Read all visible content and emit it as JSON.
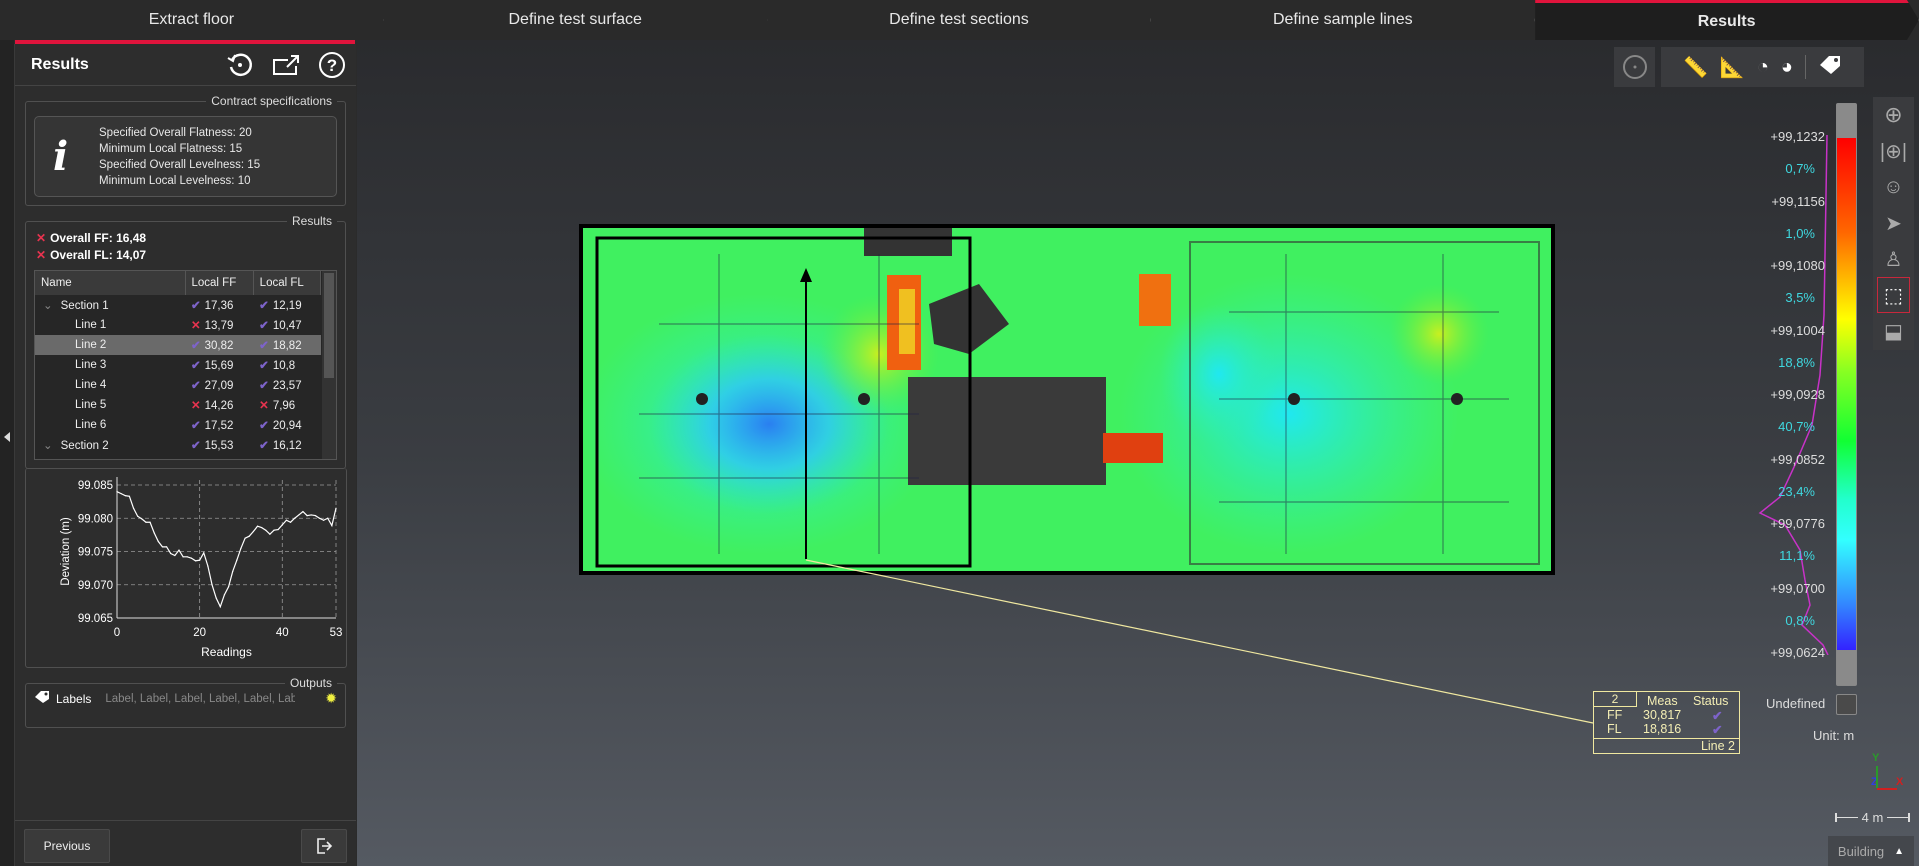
{
  "tabs": [
    "Extract floor",
    "Define test surface",
    "Define test sections",
    "Define sample lines",
    "Results"
  ],
  "panel": {
    "title": "Results",
    "contract": {
      "legend": "Contract specifications",
      "lines": [
        "Specified Overall Flatness: 20",
        "Minimum Local Flatness: 15",
        "Specified Overall Levelness: 15",
        "Minimum Local Levelness: 10"
      ]
    },
    "results": {
      "legend": "Results",
      "overall_ff": "Overall FF: 16,48",
      "overall_fl": "Overall FL: 14,07",
      "columns": [
        "Name",
        "Local FF",
        "Local FL"
      ],
      "rows": [
        {
          "name": "Section 1",
          "ff": "17,36",
          "ff_ok": true,
          "fl": "12,19",
          "fl_ok": true,
          "section": true
        },
        {
          "name": "Line 1",
          "ff": "13,79",
          "ff_ok": false,
          "fl": "10,47",
          "fl_ok": true
        },
        {
          "name": "Line 2",
          "ff": "30,82",
          "ff_ok": true,
          "fl": "18,82",
          "fl_ok": true,
          "selected": true
        },
        {
          "name": "Line 3",
          "ff": "15,69",
          "ff_ok": true,
          "fl": "10,8",
          "fl_ok": true
        },
        {
          "name": "Line 4",
          "ff": "27,09",
          "ff_ok": true,
          "fl": "23,57",
          "fl_ok": true
        },
        {
          "name": "Line 5",
          "ff": "14,26",
          "ff_ok": false,
          "fl": "7,96",
          "fl_ok": false
        },
        {
          "name": "Line 6",
          "ff": "17,52",
          "ff_ok": true,
          "fl": "20,94",
          "fl_ok": true
        },
        {
          "name": "Section 2",
          "ff": "15,53",
          "ff_ok": true,
          "fl": "16,12",
          "fl_ok": true,
          "section": true
        }
      ]
    },
    "outputs": {
      "legend": "Outputs",
      "label": "Labels",
      "value": "Label, Label, Label, Label, Label, Lab"
    },
    "previous": "Previous"
  },
  "chart_data": {
    "type": "line",
    "xlabel": "Readings",
    "ylabel": "Deviation (m)",
    "xlim": [
      0,
      53
    ],
    "ylim": [
      99.065,
      99.085
    ],
    "xticks": [
      "0",
      "20",
      "40",
      "53"
    ],
    "yticks": [
      "99.085",
      "99.080",
      "99.075",
      "99.070",
      "99.065"
    ],
    "grid": true,
    "values": [
      99.084,
      99.0837,
      99.0834,
      99.0833,
      99.0815,
      99.0803,
      99.0799,
      99.0794,
      99.0794,
      99.0778,
      99.0765,
      99.0757,
      99.0757,
      99.0747,
      99.0744,
      99.0752,
      99.0742,
      99.0742,
      99.074,
      99.0736,
      99.0737,
      99.0748,
      99.0728,
      99.07,
      99.068,
      99.0667,
      99.0685,
      99.0697,
      99.072,
      99.0737,
      99.0755,
      99.077,
      99.0773,
      99.078,
      99.0788,
      99.0786,
      99.0782,
      99.0776,
      99.0782,
      99.0783,
      99.079,
      99.0797,
      99.0794,
      99.08,
      99.0805,
      99.081,
      99.0804,
      99.0805,
      99.0804,
      99.08,
      99.0797,
      99.08,
      99.0789,
      99.0815
    ]
  },
  "colorbar": {
    "values": [
      "+99,1232",
      "+99,1156",
      "+99,1080",
      "+99,1004",
      "+99,0928",
      "+99,0852",
      "+99,0776",
      "+99,0700",
      "+99,0624"
    ],
    "percents": [
      "0,7%",
      "1,0%",
      "3,5%",
      "18,8%",
      "40,7%",
      "23,4%",
      "11,1%",
      "0,8%"
    ],
    "undefined": "Undefined",
    "unit": "Unit: m"
  },
  "callout": {
    "id": "2",
    "col_meas": "Meas",
    "col_status": "Status",
    "ff_label": "FF",
    "ff": "30,817",
    "fl_label": "FL",
    "fl": "18,816",
    "name": "Line 2"
  },
  "axes": {
    "y": "Y",
    "z": "Z",
    "x": "X"
  },
  "scale": "4 m",
  "building": "Building",
  "colors": {
    "accent": "#e0143c",
    "pass": "#7d63c9",
    "fail": "#e8334f",
    "percent": "#3fd8e0",
    "histogram": "#c832c8"
  }
}
